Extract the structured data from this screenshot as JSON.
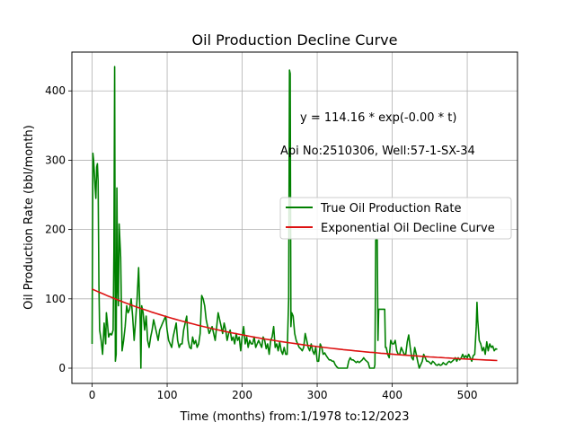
{
  "chart_data": {
    "type": "line",
    "title": "Oil Production Decline Curve",
    "xlabel": "Time (months) from:1/1978 to:12/2023",
    "ylabel": "Oil Production Rate (bbl/month)",
    "xlim": [
      -27,
      567
    ],
    "ylim": [
      -22,
      456
    ],
    "xticks": [
      0,
      100,
      200,
      300,
      400,
      500
    ],
    "yticks": [
      0,
      100,
      200,
      300,
      400
    ],
    "grid": true,
    "legend_position": "center-right",
    "annotations": [
      "y = 114.16 * exp(-0.00 * t)",
      "Api No:2510306, Well:57-1-SX-34"
    ],
    "series": [
      {
        "name": "True Oil Production Rate",
        "color": "#008000",
        "kind": "line",
        "points": [
          [
            0,
            35
          ],
          [
            1,
            310
          ],
          [
            2,
            300
          ],
          [
            3,
            280
          ],
          [
            4,
            260
          ],
          [
            5,
            245
          ],
          [
            6,
            290
          ],
          [
            7,
            295
          ],
          [
            8,
            270
          ],
          [
            9,
            120
          ],
          [
            10,
            55
          ],
          [
            12,
            40
          ],
          [
            14,
            20
          ],
          [
            16,
            65
          ],
          [
            18,
            35
          ],
          [
            19,
            80
          ],
          [
            20,
            70
          ],
          [
            22,
            45
          ],
          [
            24,
            50
          ],
          [
            26,
            48
          ],
          [
            28,
            55
          ],
          [
            29,
            170
          ],
          [
            30,
            435
          ],
          [
            31,
            10
          ],
          [
            32,
            20
          ],
          [
            33,
            260
          ],
          [
            34,
            120
          ],
          [
            35,
            90
          ],
          [
            36,
            208
          ],
          [
            38,
            160
          ],
          [
            40,
            25
          ],
          [
            42,
            40
          ],
          [
            44,
            60
          ],
          [
            46,
            90
          ],
          [
            48,
            80
          ],
          [
            50,
            85
          ],
          [
            52,
            100
          ],
          [
            54,
            75
          ],
          [
            56,
            40
          ],
          [
            58,
            70
          ],
          [
            60,
            100
          ],
          [
            62,
            145
          ],
          [
            64,
            70
          ],
          [
            65,
            0
          ],
          [
            66,
            90
          ],
          [
            68,
            80
          ],
          [
            70,
            55
          ],
          [
            72,
            75
          ],
          [
            74,
            40
          ],
          [
            76,
            30
          ],
          [
            78,
            45
          ],
          [
            80,
            55
          ],
          [
            82,
            70
          ],
          [
            84,
            60
          ],
          [
            86,
            50
          ],
          [
            88,
            40
          ],
          [
            90,
            55
          ],
          [
            92,
            60
          ],
          [
            94,
            65
          ],
          [
            96,
            70
          ],
          [
            98,
            75
          ],
          [
            100,
            55
          ],
          [
            102,
            40
          ],
          [
            104,
            35
          ],
          [
            106,
            30
          ],
          [
            108,
            45
          ],
          [
            110,
            55
          ],
          [
            112,
            65
          ],
          [
            114,
            40
          ],
          [
            116,
            30
          ],
          [
            118,
            35
          ],
          [
            120,
            35
          ],
          [
            122,
            55
          ],
          [
            124,
            65
          ],
          [
            126,
            75
          ],
          [
            128,
            40
          ],
          [
            130,
            30
          ],
          [
            132,
            28
          ],
          [
            134,
            45
          ],
          [
            136,
            35
          ],
          [
            138,
            40
          ],
          [
            140,
            30
          ],
          [
            142,
            35
          ],
          [
            144,
            50
          ],
          [
            146,
            105
          ],
          [
            148,
            100
          ],
          [
            150,
            90
          ],
          [
            152,
            70
          ],
          [
            154,
            60
          ],
          [
            156,
            50
          ],
          [
            158,
            55
          ],
          [
            160,
            60
          ],
          [
            162,
            50
          ],
          [
            164,
            40
          ],
          [
            166,
            60
          ],
          [
            168,
            80
          ],
          [
            170,
            70
          ],
          [
            172,
            60
          ],
          [
            174,
            50
          ],
          [
            176,
            65
          ],
          [
            178,
            55
          ],
          [
            180,
            40
          ],
          [
            182,
            50
          ],
          [
            184,
            55
          ],
          [
            186,
            40
          ],
          [
            188,
            45
          ],
          [
            190,
            35
          ],
          [
            192,
            50
          ],
          [
            194,
            40
          ],
          [
            196,
            45
          ],
          [
            198,
            25
          ],
          [
            200,
            45
          ],
          [
            202,
            60
          ],
          [
            204,
            35
          ],
          [
            206,
            45
          ],
          [
            208,
            30
          ],
          [
            210,
            40
          ],
          [
            212,
            35
          ],
          [
            214,
            35
          ],
          [
            216,
            45
          ],
          [
            218,
            30
          ],
          [
            220,
            35
          ],
          [
            222,
            40
          ],
          [
            224,
            35
          ],
          [
            226,
            30
          ],
          [
            228,
            45
          ],
          [
            230,
            40
          ],
          [
            232,
            28
          ],
          [
            234,
            35
          ],
          [
            236,
            20
          ],
          [
            238,
            40
          ],
          [
            240,
            45
          ],
          [
            242,
            60
          ],
          [
            244,
            30
          ],
          [
            246,
            35
          ],
          [
            248,
            25
          ],
          [
            250,
            38
          ],
          [
            252,
            25
          ],
          [
            254,
            20
          ],
          [
            256,
            30
          ],
          [
            258,
            20
          ],
          [
            260,
            20
          ],
          [
            262,
            100
          ],
          [
            263,
            430
          ],
          [
            264,
            425
          ],
          [
            265,
            60
          ],
          [
            266,
            80
          ],
          [
            268,
            75
          ],
          [
            270,
            50
          ],
          [
            272,
            40
          ],
          [
            274,
            35
          ],
          [
            276,
            30
          ],
          [
            278,
            28
          ],
          [
            280,
            25
          ],
          [
            282,
            30
          ],
          [
            284,
            50
          ],
          [
            286,
            40
          ],
          [
            288,
            30
          ],
          [
            290,
            25
          ],
          [
            292,
            35
          ],
          [
            294,
            25
          ],
          [
            296,
            20
          ],
          [
            298,
            30
          ],
          [
            300,
            10
          ],
          [
            302,
            10
          ],
          [
            304,
            35
          ],
          [
            306,
            30
          ],
          [
            308,
            20
          ],
          [
            310,
            22
          ],
          [
            312,
            18
          ],
          [
            314,
            15
          ],
          [
            316,
            12
          ],
          [
            318,
            12
          ],
          [
            320,
            10
          ],
          [
            322,
            10
          ],
          [
            324,
            5
          ],
          [
            326,
            2
          ],
          [
            328,
            0
          ],
          [
            330,
            0
          ],
          [
            332,
            0
          ],
          [
            334,
            0
          ],
          [
            336,
            0
          ],
          [
            338,
            0
          ],
          [
            340,
            0
          ],
          [
            342,
            10
          ],
          [
            344,
            15
          ],
          [
            346,
            12
          ],
          [
            348,
            12
          ],
          [
            350,
            10
          ],
          [
            352,
            8
          ],
          [
            354,
            10
          ],
          [
            356,
            8
          ],
          [
            358,
            10
          ],
          [
            360,
            12
          ],
          [
            362,
            15
          ],
          [
            364,
            12
          ],
          [
            366,
            10
          ],
          [
            368,
            8
          ],
          [
            370,
            0
          ],
          [
            372,
            0
          ],
          [
            374,
            0
          ],
          [
            376,
            0
          ],
          [
            377,
            5
          ],
          [
            378,
            185
          ],
          [
            379,
            185
          ],
          [
            380,
            185
          ],
          [
            381,
            40
          ],
          [
            382,
            85
          ],
          [
            384,
            85
          ],
          [
            386,
            85
          ],
          [
            388,
            85
          ],
          [
            390,
            85
          ],
          [
            391,
            30
          ],
          [
            392,
            30
          ],
          [
            394,
            20
          ],
          [
            396,
            15
          ],
          [
            398,
            40
          ],
          [
            400,
            35
          ],
          [
            402,
            35
          ],
          [
            404,
            40
          ],
          [
            406,
            25
          ],
          [
            408,
            20
          ],
          [
            410,
            20
          ],
          [
            412,
            30
          ],
          [
            414,
            25
          ],
          [
            416,
            20
          ],
          [
            418,
            20
          ],
          [
            420,
            38
          ],
          [
            422,
            48
          ],
          [
            424,
            30
          ],
          [
            426,
            15
          ],
          [
            428,
            12
          ],
          [
            430,
            30
          ],
          [
            432,
            20
          ],
          [
            434,
            10
          ],
          [
            436,
            0
          ],
          [
            438,
            5
          ],
          [
            440,
            10
          ],
          [
            442,
            20
          ],
          [
            444,
            15
          ],
          [
            446,
            10
          ],
          [
            448,
            10
          ],
          [
            450,
            8
          ],
          [
            452,
            6
          ],
          [
            454,
            10
          ],
          [
            456,
            8
          ],
          [
            458,
            5
          ],
          [
            460,
            4
          ],
          [
            462,
            6
          ],
          [
            464,
            4
          ],
          [
            466,
            5
          ],
          [
            468,
            8
          ],
          [
            470,
            6
          ],
          [
            472,
            5
          ],
          [
            474,
            8
          ],
          [
            476,
            10
          ],
          [
            478,
            8
          ],
          [
            480,
            10
          ],
          [
            482,
            12
          ],
          [
            484,
            15
          ],
          [
            486,
            10
          ],
          [
            488,
            15
          ],
          [
            490,
            12
          ],
          [
            492,
            15
          ],
          [
            494,
            20
          ],
          [
            496,
            15
          ],
          [
            498,
            18
          ],
          [
            500,
            15
          ],
          [
            502,
            20
          ],
          [
            504,
            15
          ],
          [
            506,
            10
          ],
          [
            508,
            18
          ],
          [
            510,
            20
          ],
          [
            512,
            60
          ],
          [
            513,
            95
          ],
          [
            514,
            70
          ],
          [
            516,
            40
          ],
          [
            518,
            35
          ],
          [
            520,
            25
          ],
          [
            522,
            30
          ],
          [
            524,
            20
          ],
          [
            526,
            38
          ],
          [
            528,
            25
          ],
          [
            530,
            35
          ],
          [
            532,
            30
          ],
          [
            534,
            32
          ],
          [
            536,
            25
          ],
          [
            538,
            28
          ],
          [
            540,
            27
          ]
        ]
      },
      {
        "name": "Exponential Oil Decline Curve",
        "color": "#dd1111",
        "kind": "exponential",
        "a": 114.16,
        "b": 0.00433,
        "x_range": [
          0,
          540
        ]
      }
    ]
  }
}
